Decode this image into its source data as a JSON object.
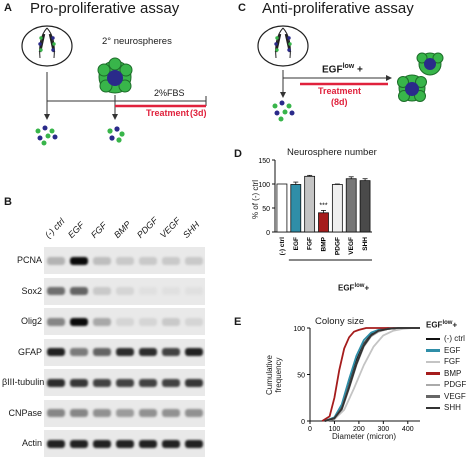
{
  "panel_a": {
    "label": "A",
    "title": "Pro-proliferative assay",
    "neurospheres_label": "2° neurospheres",
    "fbs_label": "2%FBS",
    "treatment_label": "Treatment",
    "treatment_duration": "(3d)"
  },
  "panel_b": {
    "label": "B",
    "lanes": [
      "(-) ctrl",
      "EGF",
      "FGF",
      "BMP",
      "PDGF",
      "VEGF",
      "SHH"
    ],
    "rows": [
      {
        "name": "PCNA",
        "bands": [
          0.25,
          1.0,
          0.2,
          0.15,
          0.15,
          0.15,
          0.15
        ]
      },
      {
        "name": "Sox2",
        "bands": [
          0.55,
          0.6,
          0.15,
          0.1,
          0.05,
          0.05,
          0.05
        ]
      },
      {
        "name": "Olig2",
        "bands": [
          0.45,
          1.0,
          0.3,
          0.1,
          0.1,
          0.15,
          0.1
        ]
      },
      {
        "name": "GFAP",
        "bands": [
          0.9,
          0.5,
          0.6,
          0.85,
          0.85,
          0.75,
          0.9
        ]
      },
      {
        "name": "βIII-tubulin",
        "bands": [
          0.85,
          0.8,
          0.75,
          0.75,
          0.75,
          0.75,
          0.8
        ]
      },
      {
        "name": "CNPase",
        "bands": [
          0.45,
          0.45,
          0.4,
          0.35,
          0.4,
          0.4,
          0.4
        ]
      },
      {
        "name": "Actin",
        "bands": [
          0.9,
          0.9,
          0.9,
          0.9,
          0.9,
          0.9,
          0.9
        ]
      }
    ]
  },
  "panel_c": {
    "label": "C",
    "title": "Anti-proliferative assay",
    "egf_label": "EGF",
    "egf_sup": "low",
    "egf_plus": " +",
    "treatment_label": "Treatment",
    "treatment_duration": "(8d)"
  },
  "chart_data": [
    {
      "panel": "D",
      "type": "bar",
      "title": "Neurosphere number",
      "ylabel": "% of (-) ctrl",
      "xlabel_main": "EGF",
      "xlabel_sup": "low",
      "xlabel_plus": "+",
      "categories": [
        "(-) ctrl",
        "EGF",
        "FGF",
        "BMP",
        "PDGF",
        "VEGF",
        "SHH"
      ],
      "values": [
        100,
        99,
        116,
        40,
        99,
        111,
        107
      ],
      "errors": [
        0,
        5,
        2,
        5,
        1,
        4,
        4
      ],
      "colors": [
        "#ffffff",
        "#2f8ea8",
        "#c4c4c4",
        "#a51c1c",
        "#f0f0f0",
        "#777777",
        "#4a4a4a"
      ],
      "ylim": [
        0,
        150
      ],
      "yticks": [
        0,
        50,
        100,
        150
      ],
      "annotation": {
        "category": "BMP",
        "text": "***"
      }
    },
    {
      "panel": "E",
      "type": "line",
      "title": "Colony size",
      "xlabel": "Diameter (micron)",
      "ylabel": "Cumulative frequency",
      "xlim": [
        0,
        450
      ],
      "ylim": [
        0,
        100
      ],
      "xticks": [
        0,
        100,
        200,
        300,
        400
      ],
      "yticks": [
        0,
        50,
        100
      ],
      "legend_title_main": "EGF",
      "legend_title_sup": "low",
      "legend_title_plus": "+",
      "legend_position": "right",
      "series": [
        {
          "name": "(-) ctrl",
          "color": "#111111",
          "x": [
            60,
            100,
            130,
            160,
            190,
            220,
            250,
            280,
            320,
            360
          ],
          "y": [
            0,
            3,
            15,
            40,
            65,
            83,
            93,
            97,
            99,
            100
          ]
        },
        {
          "name": "EGF",
          "color": "#2f8ea8",
          "x": [
            60,
            100,
            130,
            160,
            190,
            220,
            250,
            280,
            320,
            360
          ],
          "y": [
            0,
            4,
            18,
            45,
            70,
            87,
            95,
            98,
            100,
            100
          ]
        },
        {
          "name": "FGF",
          "color": "#c4c4c4",
          "x": [
            60,
            100,
            140,
            180,
            220,
            260,
            300,
            340,
            380,
            420
          ],
          "y": [
            0,
            2,
            12,
            35,
            60,
            80,
            92,
            97,
            99,
            100
          ]
        },
        {
          "name": "BMP",
          "color": "#a51c1c",
          "x": [
            50,
            80,
            100,
            120,
            140,
            160,
            180,
            200,
            230,
            260
          ],
          "y": [
            0,
            5,
            25,
            55,
            78,
            90,
            96,
            98,
            100,
            100
          ]
        },
        {
          "name": "PDGF",
          "color": "#aaaaaa",
          "x": [
            60,
            100,
            130,
            160,
            190,
            220,
            250,
            280,
            320,
            360
          ],
          "y": [
            0,
            2,
            12,
            35,
            60,
            80,
            91,
            96,
            99,
            100
          ]
        },
        {
          "name": "VEGF",
          "color": "#666666",
          "x": [
            60,
            100,
            130,
            160,
            190,
            220,
            250,
            280,
            320,
            360
          ],
          "y": [
            0,
            3,
            14,
            38,
            62,
            82,
            92,
            97,
            99,
            100
          ]
        },
        {
          "name": "SHH",
          "color": "#333333",
          "x": [
            60,
            100,
            130,
            160,
            190,
            220,
            250,
            280,
            320,
            360
          ],
          "y": [
            0,
            3,
            13,
            36,
            61,
            81,
            92,
            97,
            99,
            100
          ]
        }
      ]
    }
  ],
  "colors": {
    "sphere_green": "#38b54a",
    "sphere_blue": "#2a2a8a",
    "treatment_red": "#e0213c"
  }
}
